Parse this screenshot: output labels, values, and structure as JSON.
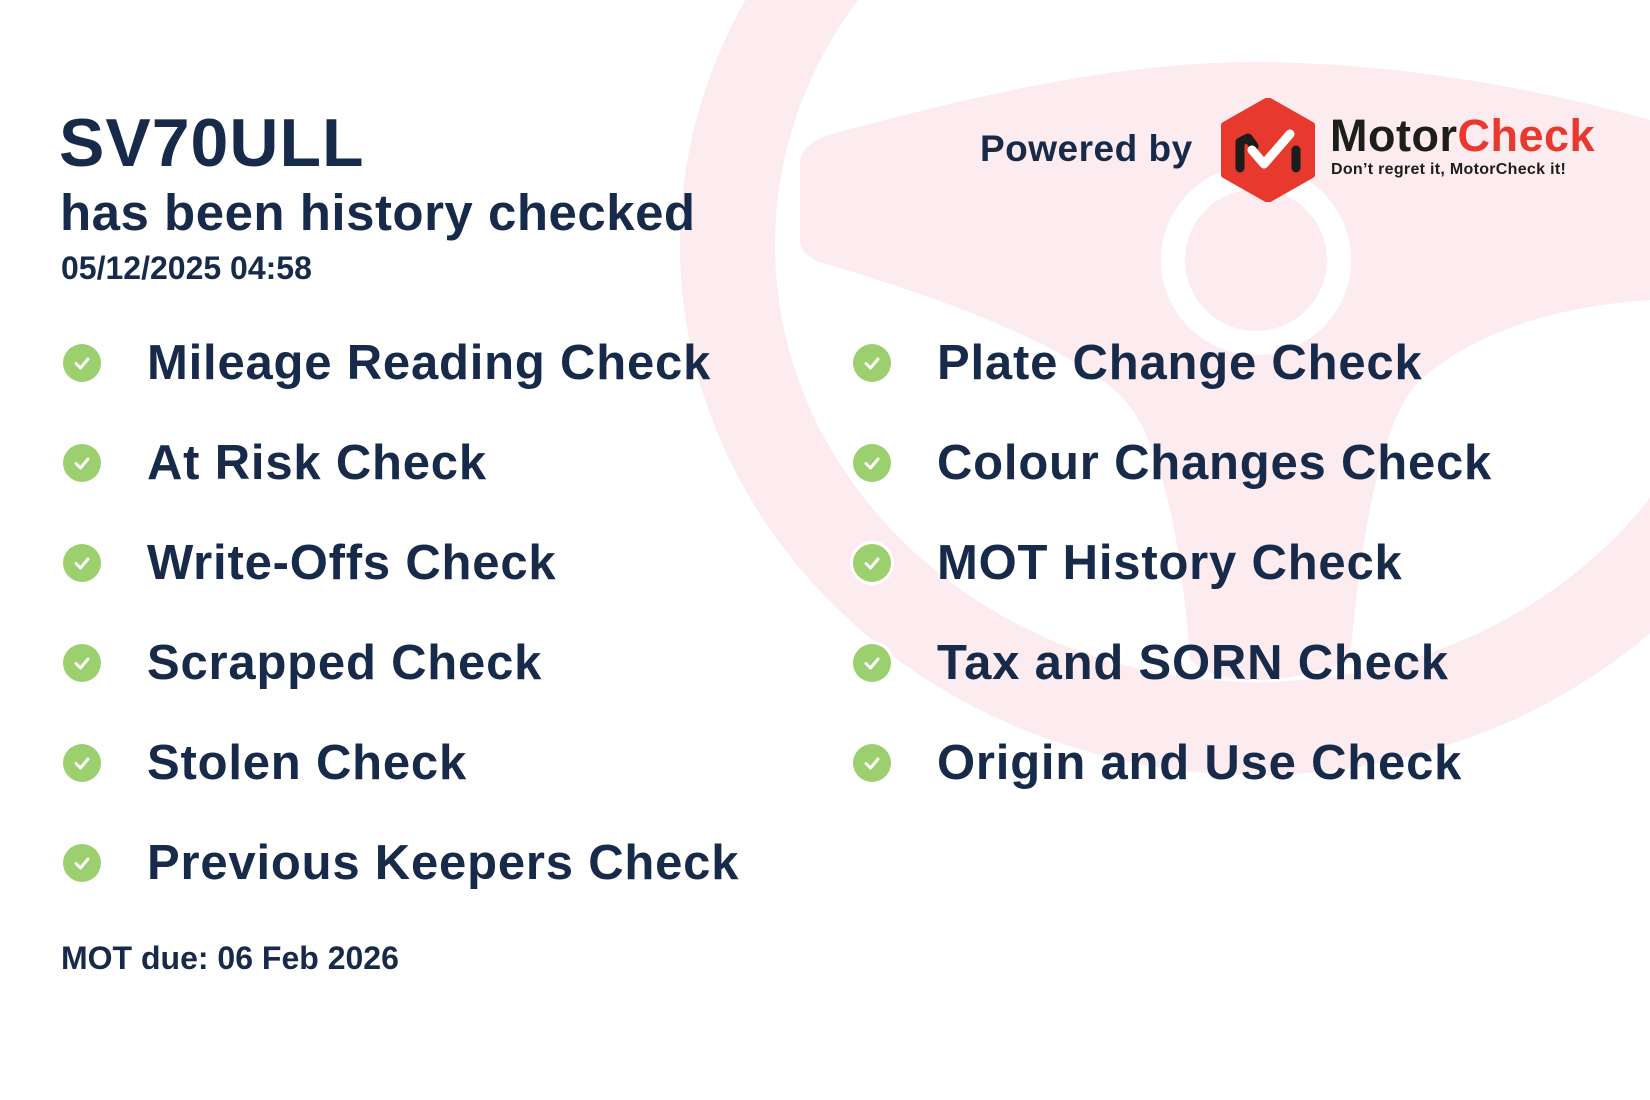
{
  "report": {
    "plate": "SV70ULL",
    "subtitle": "has been history checked",
    "checked_at": "05/12/2025 04:58",
    "mot_due": "MOT due: 06 Feb 2026"
  },
  "checks_left": [
    {
      "label": "Mileage Reading Check",
      "icon": "check-circle-icon",
      "status": "passed"
    },
    {
      "label": "At Risk Check",
      "icon": "check-circle-icon",
      "status": "passed"
    },
    {
      "label": "Write-Offs Check",
      "icon": "check-circle-icon",
      "status": "passed"
    },
    {
      "label": "Scrapped Check",
      "icon": "check-circle-icon",
      "status": "passed"
    },
    {
      "label": "Stolen Check",
      "icon": "check-circle-icon",
      "status": "passed"
    },
    {
      "label": "Previous Keepers Check",
      "icon": "check-circle-icon",
      "status": "passed"
    }
  ],
  "checks_right": [
    {
      "label": "Plate Change Check",
      "icon": "check-circle-icon",
      "status": "passed"
    },
    {
      "label": "Colour Changes Check",
      "icon": "check-circle-icon",
      "status": "passed"
    },
    {
      "label": "MOT History Check",
      "icon": "check-circle-icon",
      "status": "passed"
    },
    {
      "label": "Tax and SORN Check",
      "icon": "check-circle-icon",
      "status": "passed"
    },
    {
      "label": "Origin and Use Check",
      "icon": "check-circle-icon",
      "status": "passed"
    }
  ],
  "branding": {
    "powered_by": "Powered by",
    "brand_part1": "Motor",
    "brand_part2": "Check",
    "tagline": "Don’t regret it, MotorCheck it!"
  },
  "colors": {
    "text": "#172a4a",
    "check_green": "#9ccf6e",
    "brand_red": "#e8392f",
    "watermark_pink": "#fcebef"
  }
}
